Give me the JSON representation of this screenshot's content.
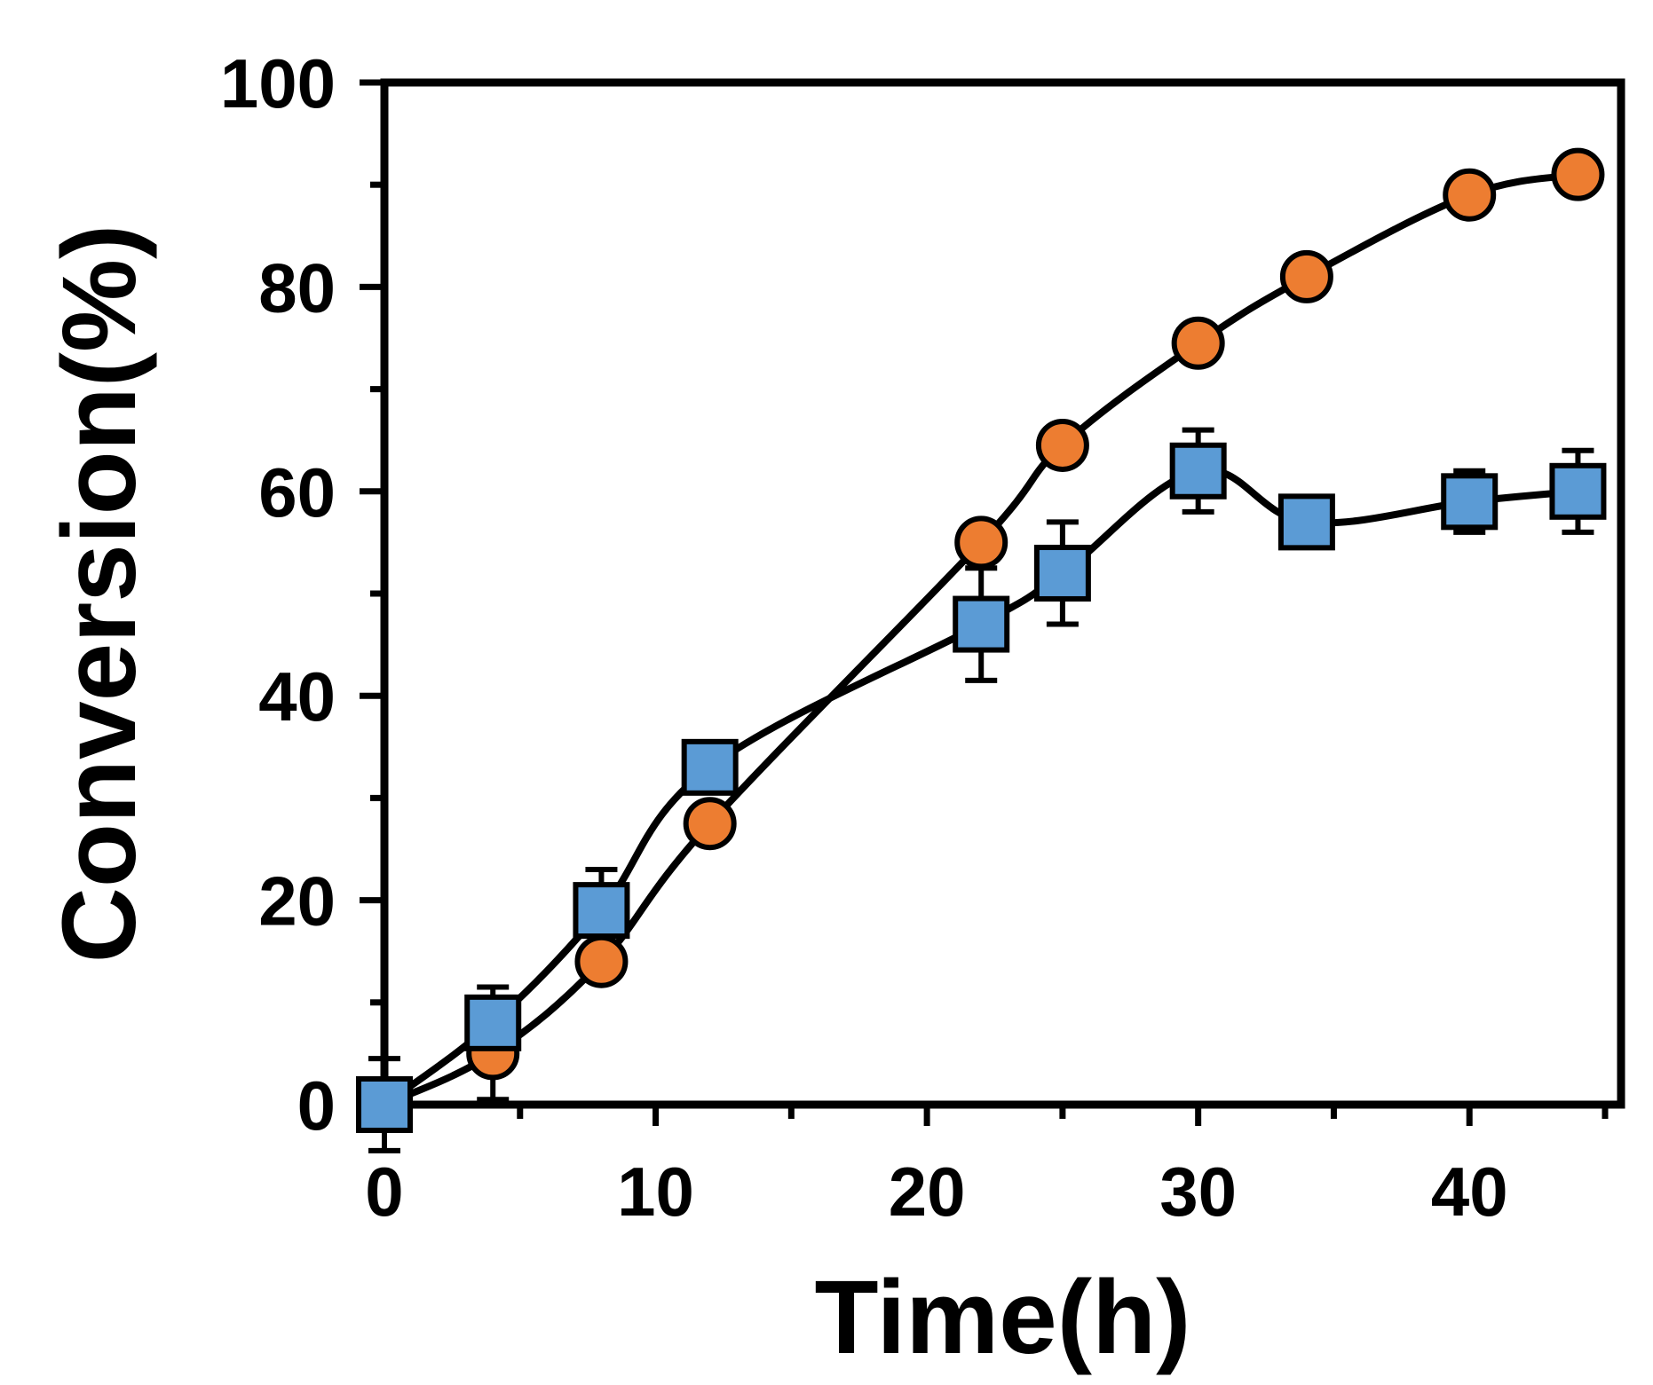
{
  "chart_data": {
    "type": "line",
    "title": "",
    "xlabel": "Time(h)",
    "ylabel": "Conversion(%)",
    "xlim": [
      0,
      45
    ],
    "ylim": [
      0,
      100
    ],
    "x_ticks": [
      0,
      10,
      20,
      30,
      40
    ],
    "x_tick_labels": [
      "0",
      "10",
      "20",
      "30",
      "40"
    ],
    "x_minor_ticks": [
      5,
      15,
      25,
      35,
      45
    ],
    "y_ticks": [
      0,
      20,
      40,
      60,
      80,
      100
    ],
    "y_tick_labels": [
      "0",
      "20",
      "40",
      "60",
      "80",
      "100"
    ],
    "y_minor_ticks": [
      10,
      30,
      50,
      70,
      90
    ],
    "grid": false,
    "legend": "none",
    "series": [
      {
        "name": "orange-circles",
        "marker": "circle",
        "color": "#ED7D31",
        "x": [
          0,
          4,
          8,
          12,
          22,
          25,
          30,
          34,
          40,
          44
        ],
        "values": [
          0,
          5,
          14,
          27.5,
          55,
          64.5,
          74.5,
          81,
          89,
          91
        ],
        "error": [
          4.5,
          4.5,
          0,
          0,
          0,
          0,
          0,
          0,
          0,
          0
        ]
      },
      {
        "name": "blue-squares",
        "marker": "square",
        "color": "#5B9BD5",
        "x": [
          0,
          4,
          8,
          12,
          22,
          25,
          30,
          34,
          40,
          44
        ],
        "values": [
          0,
          8,
          19,
          33,
          47,
          52,
          62,
          57,
          59,
          60
        ],
        "error": [
          0,
          3.5,
          4,
          0,
          5.5,
          5,
          4,
          0,
          3,
          4
        ]
      }
    ]
  }
}
